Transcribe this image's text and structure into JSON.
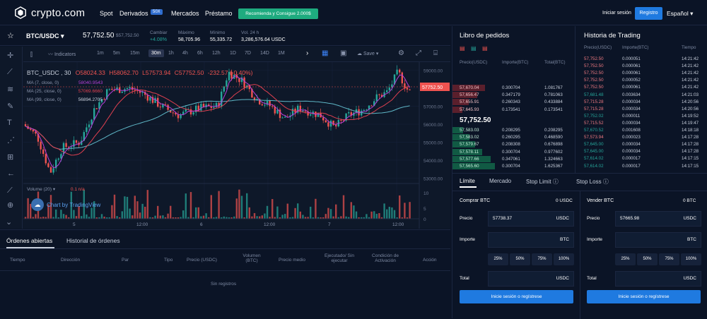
{
  "header": {
    "logo_text": "crypto.com",
    "nav": [
      "Spot",
      "Derivados",
      "Mercados",
      "Préstamo"
    ],
    "badge": "50X",
    "promo": "Recomienda y Consigue 2.000$",
    "login": "Iniciar sesión",
    "register": "Registro",
    "language": "Español"
  },
  "pair": {
    "symbol": "BTC/USDC",
    "price": "57,752.50",
    "price_small": "$57,752.50",
    "change_label": "Cambiar",
    "change": "+4.08%",
    "high_label": "Máximo",
    "high": "58,705.96",
    "low_label": "Mínimo",
    "low": "55,335.72",
    "vol_label": "Vol. 24 h",
    "vol": "3,286,576.64 USDC"
  },
  "chart_toolbar": {
    "indicators": "Indicators",
    "timeframes": [
      "1m",
      "5m",
      "15m",
      "30m",
      "1h",
      "4h",
      "6h",
      "12h",
      "1D",
      "7D",
      "14D",
      "1M"
    ],
    "selected": "30m",
    "save": "Save"
  },
  "chart_legend": {
    "symbol": "BTC_USDC , 30",
    "o": "O58024.33",
    "h": "H58062.70",
    "l": "L57573.94",
    "c": "C57752.50",
    "chg": "-232.57 (-0.40%)",
    "ma7": "MA (7, close, 0)",
    "ma7v": "58040.9543",
    "ma25": "MA (25, close, 0)",
    "ma25v": "57069.6660",
    "ma99": "MA (99, close, 0)",
    "ma99v": "56894.2705",
    "volume": "Volume (20)",
    "vol_vals": "0.1  n/a",
    "watermark": "Chart by TradingView",
    "last": "57752.50"
  },
  "chart_data": {
    "type": "candlestick",
    "y_ticks": [
      "59000.00",
      "58000.00",
      "57000.00",
      "56000.00",
      "55000.00",
      "54000.00",
      "53000.00"
    ],
    "vol_ticks": [
      "10",
      "5",
      "0"
    ],
    "x_ticks": [
      "5",
      "12:00",
      "6",
      "12:00",
      "7",
      "12:00"
    ],
    "ylim": [
      52700,
      59300
    ]
  },
  "tabs": {
    "open": "Órdenes abiertas",
    "history": "Historial de órdenes"
  },
  "order_cols": [
    "Tiempo",
    "Dirección",
    "Par",
    "Tipo",
    "Precio (USDC)",
    "Volumen (BTC)",
    "Precio medio",
    "Ejecutado/ Sin ejecutar",
    "Condición de Activación",
    "Acción"
  ],
  "no_records": "Sin registros",
  "book": {
    "title": "Libro de pedidos",
    "cols": [
      "Precio(USDC)",
      "Importe(BTC)",
      "Total(BTC)"
    ],
    "asks": [
      [
        "57,670.04",
        "0.300704",
        "1.081767"
      ],
      [
        "57,656.47",
        "0.347179",
        "0.781063"
      ],
      [
        "57,655.91",
        "0.260343",
        "0.433884"
      ],
      [
        "57,645.93",
        "0.173541",
        "0.173541"
      ]
    ],
    "mid": "57,752.50",
    "bids": [
      [
        "57,583.03",
        "0.208295",
        "0.208295"
      ],
      [
        "57,583.02",
        "0.260295",
        "0.468590"
      ],
      [
        "57,579.67",
        "0.208308",
        "0.676898"
      ],
      [
        "57,578.11",
        "0.300704",
        "0.977602"
      ],
      [
        "57,577.66",
        "0.347061",
        "1.324663"
      ],
      [
        "57,565.60",
        "0.300704",
        "1.625367"
      ]
    ]
  },
  "history": {
    "title": "Historia de Trading",
    "cols": [
      "Precio(USDC)",
      "Importe(BTC)",
      "Tiempo"
    ],
    "rows": [
      [
        "57,752.50",
        "0.000051",
        "14:21:42",
        "r"
      ],
      [
        "57,752.50",
        "0.000061",
        "14:21:42",
        "r"
      ],
      [
        "57,752.50",
        "0.000061",
        "14:21:42",
        "r"
      ],
      [
        "57,752.50",
        "0.000052",
        "14:21:42",
        "r"
      ],
      [
        "57,752.50",
        "0.000061",
        "14:21:42",
        "r"
      ],
      [
        "57,681.48",
        "0.003634",
        "14:21:03",
        "g"
      ],
      [
        "57,715.28",
        "0.000034",
        "14:20:56",
        "r"
      ],
      [
        "57,715.28",
        "0.000034",
        "14:20:56",
        "r"
      ],
      [
        "57,752.02",
        "0.000011",
        "14:19:52",
        "g"
      ],
      [
        "57,715.52",
        "0.000034",
        "14:19:47",
        "r"
      ],
      [
        "57,670.52",
        "0.001608",
        "14:18:18",
        "g"
      ],
      [
        "57,573.94",
        "0.000023",
        "14:17:28",
        "r"
      ],
      [
        "57,645.00",
        "0.000034",
        "14:17:28",
        "g"
      ],
      [
        "57,645.00",
        "0.000034",
        "14:17:28",
        "g"
      ],
      [
        "57,614.02",
        "0.000017",
        "14:17:15",
        "g"
      ],
      [
        "57,614.02",
        "0.000017",
        "14:17:15",
        "g"
      ]
    ]
  },
  "trade": {
    "tabs": [
      "Límite",
      "Mercado",
      "Stop Limit",
      "Stop Loss"
    ],
    "buy": {
      "title": "Comprar BTC",
      "bal": "0 USDC",
      "price_label": "Precio",
      "price": "57738.37",
      "price_unit": "USDC",
      "amount_label": "Importe",
      "amount_unit": "BTC",
      "pcts": [
        "25%",
        "50%",
        "75%",
        "100%"
      ],
      "total_label": "Total",
      "total_unit": "USDC",
      "button": "Inicie sesión o regístrese"
    },
    "sell": {
      "title": "Vender BTC",
      "bal": "0 BTC",
      "price_label": "Precio",
      "price": "57665.98",
      "price_unit": "USDC",
      "amount_label": "Importe",
      "amount_unit": "BTC",
      "pcts": [
        "25%",
        "50%",
        "75%",
        "100%"
      ],
      "total_label": "Total",
      "total_unit": "USDC",
      "button": "Inicie sesión o regístrese"
    }
  },
  "colors": {
    "up": "#26a69a",
    "down": "#ef5350",
    "accent": "#1f7ae0"
  }
}
